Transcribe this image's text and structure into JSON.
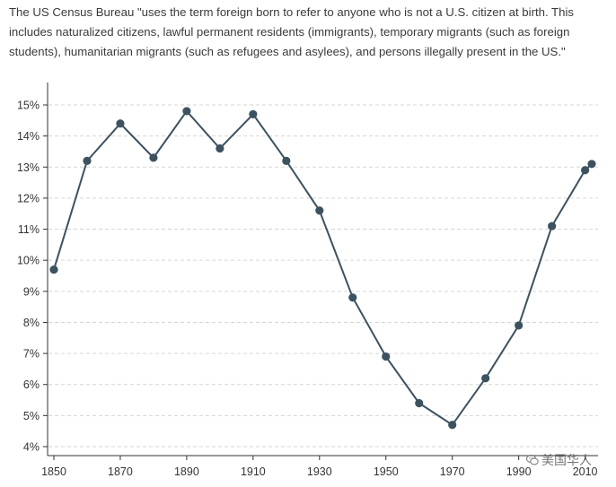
{
  "caption": "The US Census Bureau \"uses the term foreign born to refer to anyone who is not a U.S. citizen at birth. This includes naturalized citizens, lawful permanent residents (immigrants), temporary migrants (such as foreign students), humanitarian migrants (such as refugees and asylees), and persons illegally present in the US.\"",
  "watermark": {
    "text": "美国华人",
    "icon": "wechat-icon"
  },
  "colors": {
    "series": "#3d5260",
    "grid": "#d6d6d6",
    "axis": "#333333"
  },
  "chart_data": {
    "type": "line",
    "title": "",
    "xlabel": "",
    "ylabel": "",
    "x": [
      1850,
      1860,
      1870,
      1880,
      1890,
      1900,
      1910,
      1920,
      1930,
      1940,
      1950,
      1960,
      1970,
      1980,
      1990,
      2000,
      2010
    ],
    "series": [
      {
        "values": [
          9.7,
          13.2,
          14.4,
          13.3,
          14.8,
          13.6,
          14.7,
          13.2,
          11.6,
          8.8,
          6.9,
          5.4,
          4.7,
          6.2,
          7.9,
          11.1,
          12.9
        ]
      }
    ],
    "extra_point": {
      "x": 2012,
      "y": 13.1
    },
    "xlim": [
      1850,
      2012
    ],
    "ylim": [
      4,
      15
    ],
    "x_ticks": [
      "1850",
      "1870",
      "1890",
      "1910",
      "1930",
      "1950",
      "1970",
      "1990",
      "2010"
    ],
    "y_ticks": [
      "4%",
      "5%",
      "6%",
      "7%",
      "8%",
      "9%",
      "10%",
      "11%",
      "12%",
      "13%",
      "14%",
      "15%"
    ],
    "grid": "horizontal dashed",
    "legend": "none"
  }
}
